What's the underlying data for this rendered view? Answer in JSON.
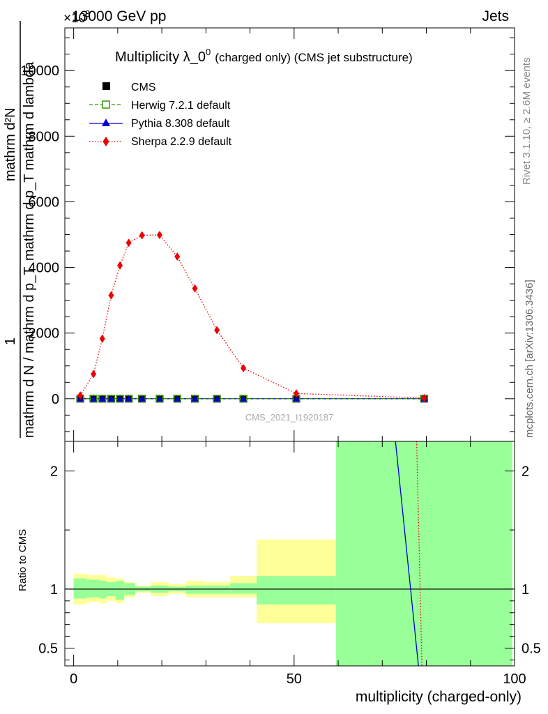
{
  "header": {
    "left": "13000 GeV pp",
    "right": "Jets",
    "exponent_base": "×10",
    "exponent_power": "3"
  },
  "side": {
    "rivet": "Rivet 3.1.10, ≥ 2.6M events",
    "mcplots": "mcplots.cern.ch [arXiv:1306.3436]"
  },
  "watermark": "CMS_2021_I1920187",
  "colors": {
    "cms": "#000000",
    "herwig": "#339900",
    "pythia": "#0000cc",
    "sherpa": "#ee0000",
    "band_inner": "#99ff99",
    "band_outer": "#ffff99"
  },
  "chart_data": [
    {
      "type": "line",
      "title": "Multiplicity λ_0",
      "title_power": "0",
      "title_note": "(charged only) (CMS jet substructure)",
      "ylabel_top": "mathrm d²N",
      "ylabel_mid": "mathrm d p_T mathrm d lambda",
      "ylabel_one": "1",
      "ylabel_bottom": "mathrm d N / mathrm d p_T",
      "xlim": [
        -2,
        100
      ],
      "ylim": [
        -1300,
        11300
      ],
      "y_scale_note": "values ×1000",
      "yticks": [
        0,
        2000,
        4000,
        6000,
        8000,
        10000
      ],
      "ytick_labels": [
        "0",
        "2000",
        "4000",
        "6000",
        "8000",
        "10000"
      ],
      "legend": [
        "CMS",
        "Herwig 7.2.1 default",
        "Pythia 8.308 default",
        "Sherpa 2.2.9 default"
      ],
      "x": [
        1.5,
        4.5,
        6.5,
        8.5,
        10.5,
        12.5,
        15.5,
        19.5,
        23.5,
        27.5,
        32.5,
        38.5,
        50.5,
        79.5
      ],
      "series": [
        {
          "name": "CMS",
          "values": [
            0,
            0,
            0,
            0,
            0,
            0,
            0,
            0,
            0,
            0,
            0,
            0,
            0,
            0
          ]
        },
        {
          "name": "Herwig 7.2.1 default",
          "values": [
            0,
            0,
            0,
            0,
            0,
            0,
            0,
            0,
            0,
            0,
            0,
            0,
            0,
            0
          ]
        },
        {
          "name": "Pythia 8.308 default",
          "values": [
            0,
            0,
            0,
            0,
            0,
            0,
            0,
            0,
            0,
            0,
            0,
            0,
            0,
            0
          ]
        },
        {
          "name": "Sherpa 2.2.9 default",
          "values": [
            100,
            750,
            1830,
            3150,
            4060,
            4750,
            4980,
            4990,
            4330,
            3360,
            2090,
            930,
            160,
            20
          ]
        }
      ]
    },
    {
      "type": "line",
      "ylabel": "Ratio to CMS",
      "xlabel": "multiplicity (charged-only)",
      "xlim": [
        -2,
        100
      ],
      "ylim": [
        0.35,
        2.25
      ],
      "xticks": [
        0,
        50,
        100
      ],
      "xtick_labels": [
        "0",
        "50",
        "100"
      ],
      "yticks": [
        0.5,
        1,
        2
      ],
      "ytick_labels": [
        "0.5",
        "1",
        "2"
      ],
      "bands": [
        {
          "x0": 0,
          "x1": 3,
          "inner": [
            0.92,
            1.09
          ],
          "outer": [
            0.87,
            1.13
          ]
        },
        {
          "x0": 3,
          "x1": 6,
          "inner": [
            0.93,
            1.08
          ],
          "outer": [
            0.89,
            1.12
          ]
        },
        {
          "x0": 6,
          "x1": 7.5,
          "inner": [
            0.92,
            1.07
          ],
          "outer": [
            0.88,
            1.12
          ]
        },
        {
          "x0": 7.5,
          "x1": 9.5,
          "inner": [
            0.94,
            1.06
          ],
          "outer": [
            0.9,
            1.1
          ]
        },
        {
          "x0": 9.5,
          "x1": 11.5,
          "inner": [
            0.91,
            1.07
          ],
          "outer": [
            0.88,
            1.09
          ]
        },
        {
          "x0": 11.5,
          "x1": 14,
          "inner": [
            0.95,
            1.05
          ],
          "outer": [
            0.93,
            1.06
          ]
        },
        {
          "x0": 14,
          "x1": 17.5,
          "inner": [
            0.98,
            1.02
          ],
          "outer": [
            0.97,
            1.03
          ]
        },
        {
          "x0": 17.5,
          "x1": 21.5,
          "inner": [
            0.97,
            1.03
          ],
          "outer": [
            0.94,
            1.06
          ]
        },
        {
          "x0": 21.5,
          "x1": 25.5,
          "inner": [
            0.98,
            1.02
          ],
          "outer": [
            0.96,
            1.04
          ]
        },
        {
          "x0": 25.5,
          "x1": 29.5,
          "inner": [
            0.96,
            1.03
          ],
          "outer": [
            0.93,
            1.07
          ]
        },
        {
          "x0": 29.5,
          "x1": 35.5,
          "inner": [
            0.96,
            1.03
          ],
          "outer": [
            0.93,
            1.06
          ]
        },
        {
          "x0": 35.5,
          "x1": 41.5,
          "inner": [
            0.96,
            1.05
          ],
          "outer": [
            0.93,
            1.11
          ]
        },
        {
          "x0": 41.5,
          "x1": 59.5,
          "inner": [
            0.87,
            1.11
          ],
          "outer": [
            0.71,
            1.42
          ]
        },
        {
          "x0": 59.5,
          "x1": 99.5,
          "inner": [
            0.35,
            2.25
          ],
          "outer": [
            0.35,
            2.25
          ]
        }
      ],
      "reference": 1,
      "series": [
        {
          "name": "Pythia 8.308 default",
          "points": [
            [
              73.0,
              2.25
            ],
            [
              78.2,
              0.35
            ]
          ]
        },
        {
          "name": "Sherpa 2.2.9 default",
          "points": [
            [
              77.8,
              2.25
            ],
            [
              79.0,
              0.35
            ]
          ]
        }
      ]
    }
  ]
}
